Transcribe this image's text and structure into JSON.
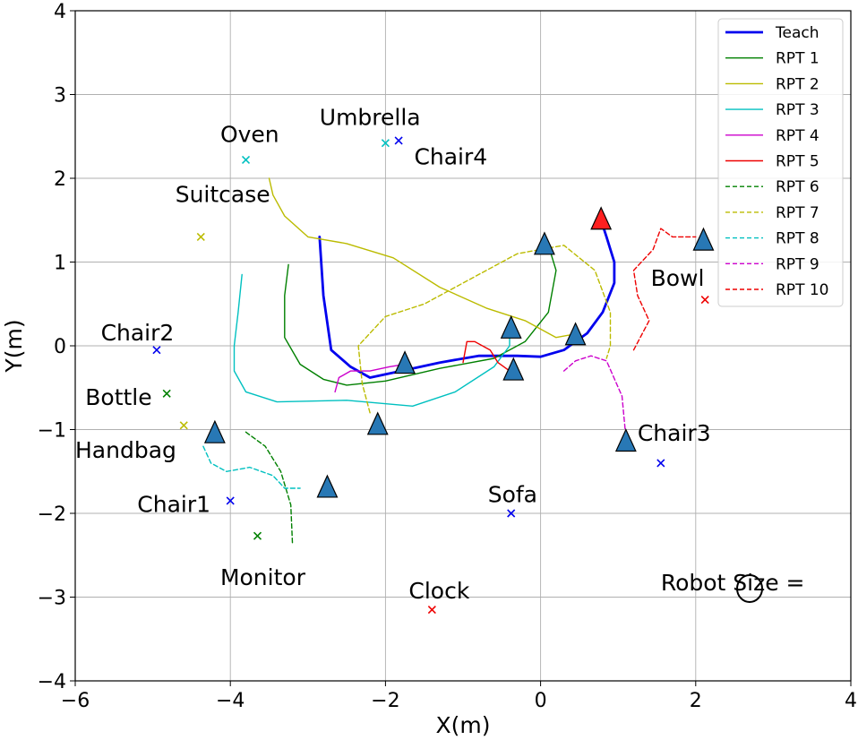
{
  "chart_data": {
    "type": "line",
    "title": "",
    "xlabel": "X(m)",
    "ylabel": "Y(m)",
    "xlim": [
      -6,
      4
    ],
    "ylim": [
      -4,
      4
    ],
    "grid": true,
    "legend_position": "top-right",
    "x_ticks": [
      -6,
      -4,
      -2,
      0,
      2,
      4
    ],
    "y_ticks": [
      -4,
      -3,
      -2,
      -1,
      0,
      1,
      2,
      3,
      4
    ],
    "x_tick_labels": [
      "−6",
      "−4",
      "−2",
      "0",
      "2",
      "4"
    ],
    "y_tick_labels": [
      "−4",
      "−3",
      "−2",
      "−1",
      "0",
      "1",
      "2",
      "3",
      "4"
    ],
    "series": [
      {
        "name": "Teach",
        "color": "#0000ee",
        "style": "solid",
        "bold": true,
        "points": [
          [
            -2.85,
            1.3
          ],
          [
            -2.8,
            0.6
          ],
          [
            -2.7,
            -0.05
          ],
          [
            -2.45,
            -0.25
          ],
          [
            -2.2,
            -0.38
          ],
          [
            -1.8,
            -0.3
          ],
          [
            -1.3,
            -0.2
          ],
          [
            -0.8,
            -0.12
          ],
          [
            -0.3,
            -0.12
          ],
          [
            0.0,
            -0.13
          ],
          [
            0.3,
            -0.05
          ],
          [
            0.6,
            0.15
          ],
          [
            0.8,
            0.4
          ],
          [
            0.95,
            0.75
          ],
          [
            0.95,
            1.0
          ],
          [
            0.85,
            1.3
          ],
          [
            0.78,
            1.5
          ]
        ]
      },
      {
        "name": "RPT 1",
        "color": "#008000",
        "style": "solid",
        "points": [
          [
            -3.25,
            0.97
          ],
          [
            -3.3,
            0.6
          ],
          [
            -3.3,
            0.1
          ],
          [
            -3.1,
            -0.22
          ],
          [
            -2.8,
            -0.4
          ],
          [
            -2.5,
            -0.47
          ],
          [
            -2.0,
            -0.42
          ],
          [
            -1.3,
            -0.27
          ],
          [
            -0.6,
            -0.15
          ],
          [
            -0.2,
            0.05
          ],
          [
            0.1,
            0.4
          ],
          [
            0.2,
            0.9
          ],
          [
            0.1,
            1.2
          ]
        ]
      },
      {
        "name": "RPT 2",
        "color": "#bbbb00",
        "style": "solid",
        "points": [
          [
            -3.5,
            2.0
          ],
          [
            -3.45,
            1.8
          ],
          [
            -3.3,
            1.55
          ],
          [
            -3.0,
            1.3
          ],
          [
            -2.5,
            1.22
          ],
          [
            -1.9,
            1.05
          ],
          [
            -1.3,
            0.7
          ],
          [
            -0.7,
            0.45
          ],
          [
            -0.2,
            0.3
          ],
          [
            0.2,
            0.1
          ],
          [
            0.5,
            0.15
          ]
        ]
      },
      {
        "name": "RPT 3",
        "color": "#00c0c0",
        "style": "solid",
        "points": [
          [
            -3.85,
            0.85
          ],
          [
            -3.9,
            0.4
          ],
          [
            -3.95,
            0.0
          ],
          [
            -3.95,
            -0.3
          ],
          [
            -3.8,
            -0.55
          ],
          [
            -3.4,
            -0.67
          ],
          [
            -2.5,
            -0.65
          ],
          [
            -1.65,
            -0.72
          ],
          [
            -1.1,
            -0.55
          ],
          [
            -0.6,
            -0.25
          ],
          [
            -0.4,
            0.0
          ],
          [
            -0.4,
            0.2
          ]
        ]
      },
      {
        "name": "RPT 4",
        "color": "#cc00cc",
        "style": "solid",
        "points": [
          [
            -2.65,
            -0.55
          ],
          [
            -2.6,
            -0.38
          ],
          [
            -2.45,
            -0.3
          ],
          [
            -2.2,
            -0.3
          ],
          [
            -1.95,
            -0.25
          ],
          [
            -1.75,
            -0.22
          ]
        ]
      },
      {
        "name": "RPT 5",
        "color": "#ee0000",
        "style": "solid",
        "points": [
          [
            -1.0,
            -0.2
          ],
          [
            -0.95,
            0.05
          ],
          [
            -0.85,
            0.05
          ],
          [
            -0.65,
            -0.05
          ],
          [
            -0.55,
            -0.2
          ],
          [
            -0.4,
            -0.3
          ]
        ]
      },
      {
        "name": "RPT 6",
        "color": "#008000",
        "style": "dashed",
        "points": [
          [
            -3.8,
            -1.03
          ],
          [
            -3.55,
            -1.2
          ],
          [
            -3.35,
            -1.5
          ],
          [
            -3.22,
            -1.9
          ],
          [
            -3.2,
            -2.35
          ]
        ]
      },
      {
        "name": "RPT 7",
        "color": "#bbbb00",
        "style": "dashed",
        "points": [
          [
            -2.2,
            -0.8
          ],
          [
            -2.3,
            -0.45
          ],
          [
            -2.35,
            0.0
          ],
          [
            -2.0,
            0.35
          ],
          [
            -1.5,
            0.5
          ],
          [
            -0.9,
            0.8
          ],
          [
            -0.3,
            1.1
          ],
          [
            0.3,
            1.2
          ],
          [
            0.7,
            0.9
          ],
          [
            0.9,
            0.4
          ],
          [
            0.9,
            0.0
          ],
          [
            0.85,
            -0.15
          ]
        ]
      },
      {
        "name": "RPT 8",
        "color": "#00c0c0",
        "style": "dashed",
        "points": [
          [
            -4.35,
            -1.2
          ],
          [
            -4.25,
            -1.4
          ],
          [
            -4.05,
            -1.5
          ],
          [
            -3.75,
            -1.45
          ],
          [
            -3.45,
            -1.55
          ],
          [
            -3.3,
            -1.7
          ],
          [
            -3.1,
            -1.7
          ]
        ]
      },
      {
        "name": "RPT 9",
        "color": "#cc00cc",
        "style": "dashed",
        "points": [
          [
            0.3,
            -0.3
          ],
          [
            0.45,
            -0.18
          ],
          [
            0.65,
            -0.12
          ],
          [
            0.85,
            -0.18
          ],
          [
            1.05,
            -0.6
          ],
          [
            1.1,
            -1.1
          ]
        ]
      },
      {
        "name": "RPT 10",
        "color": "#ee0000",
        "style": "dashed",
        "points": [
          [
            1.2,
            -0.05
          ],
          [
            1.4,
            0.3
          ],
          [
            1.25,
            0.6
          ],
          [
            1.2,
            0.9
          ],
          [
            1.45,
            1.15
          ],
          [
            1.55,
            1.4
          ],
          [
            1.7,
            1.3
          ],
          [
            2.0,
            1.3
          ]
        ]
      }
    ],
    "objects": [
      {
        "label": "Umbrella",
        "x": -2.0,
        "y": 2.42,
        "color": "#00c0c0",
        "label_dx": -0.85,
        "label_dy": 0.3
      },
      {
        "label": "Chair4",
        "x": -1.83,
        "y": 2.45,
        "color": "#0000ee",
        "label_dx": 0.2,
        "label_dy": -0.2
      },
      {
        "label": "Oven",
        "x": -3.8,
        "y": 2.22,
        "color": "#00c0c0",
        "label_dx": -0.33,
        "label_dy": 0.3
      },
      {
        "label": "Suitcase",
        "x": -4.38,
        "y": 1.3,
        "color": "#bbbb00",
        "label_dx": -0.33,
        "label_dy": 0.5
      },
      {
        "label": "Chair2",
        "x": -4.95,
        "y": -0.05,
        "color": "#0000ee",
        "label_dx": -0.72,
        "label_dy": 0.2
      },
      {
        "label": "Bottle",
        "x": -4.82,
        "y": -0.57,
        "color": "#008000",
        "label_dx": -1.05,
        "label_dy": -0.05
      },
      {
        "label": "Handbag",
        "x": -4.6,
        "y": -0.95,
        "color": "#bbbb00",
        "label_dx": -1.4,
        "label_dy": -0.3
      },
      {
        "label": "Chair1",
        "x": -4.0,
        "y": -1.85,
        "color": "#0000ee",
        "label_dx": -1.2,
        "label_dy": -0.05
      },
      {
        "label": "Monitor",
        "x": -3.65,
        "y": -2.27,
        "color": "#008000",
        "label_dx": -0.48,
        "label_dy": -0.5
      },
      {
        "label": "Sofa",
        "x": -0.38,
        "y": -2.0,
        "color": "#0000ee",
        "label_dx": -0.3,
        "label_dy": 0.22
      },
      {
        "label": "Clock",
        "x": -1.4,
        "y": -3.15,
        "color": "#ee0000",
        "label_dx": -0.3,
        "label_dy": 0.22
      },
      {
        "label": "Chair3",
        "x": 1.55,
        "y": -1.4,
        "color": "#0000ee",
        "label_dx": -0.3,
        "label_dy": 0.35
      },
      {
        "label": "Bowl",
        "x": 2.12,
        "y": 0.55,
        "color": "#ee0000",
        "label_dx": -0.7,
        "label_dy": 0.25
      }
    ],
    "poses": [
      {
        "x": 0.78,
        "y": 1.5,
        "color": "#ff2020"
      },
      {
        "x": 0.05,
        "y": 1.2,
        "color": "#2878b5"
      },
      {
        "x": 2.1,
        "y": 1.25,
        "color": "#2878b5"
      },
      {
        "x": 0.45,
        "y": 0.12,
        "color": "#2878b5"
      },
      {
        "x": -0.38,
        "y": 0.2,
        "color": "#2878b5"
      },
      {
        "x": -1.75,
        "y": -0.22,
        "color": "#2878b5"
      },
      {
        "x": -0.35,
        "y": -0.3,
        "color": "#2878b5"
      },
      {
        "x": -2.1,
        "y": -0.95,
        "color": "#2878b5"
      },
      {
        "x": -4.2,
        "y": -1.05,
        "color": "#2878b5"
      },
      {
        "x": -2.75,
        "y": -1.7,
        "color": "#2878b5"
      },
      {
        "x": 1.1,
        "y": -1.15,
        "color": "#2878b5"
      }
    ],
    "annotations": [
      {
        "text": "Robot Size =",
        "x": 1.55,
        "y": -2.92
      }
    ]
  }
}
